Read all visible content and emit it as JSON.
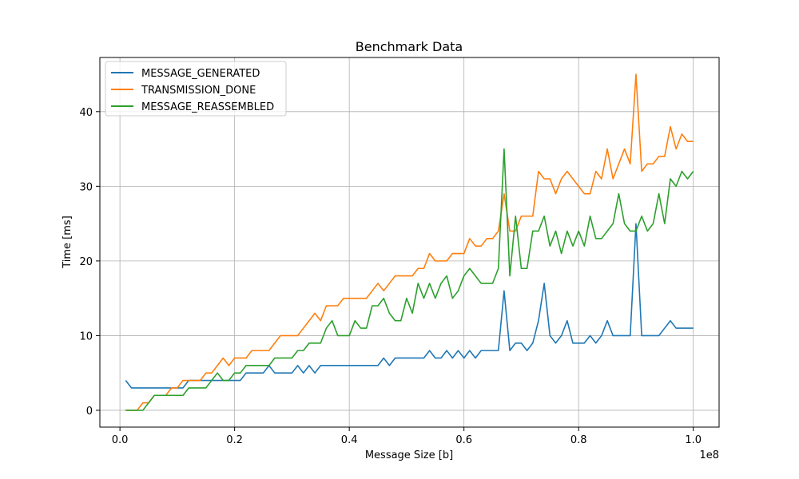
{
  "chart_data": {
    "type": "line",
    "title": "Benchmark Data",
    "xlabel": "Message Size [b]",
    "ylabel": "Time [ms]",
    "x_offset_label": "1e8",
    "xlim": [
      -3500000,
      104500000
    ],
    "ylim": [
      -2.25,
      47.25
    ],
    "xticks": [
      0,
      20000000,
      40000000,
      60000000,
      80000000,
      100000000
    ],
    "xtick_labels": [
      "0.0",
      "0.2",
      "0.4",
      "0.6",
      "0.8",
      "1.0"
    ],
    "yticks": [
      0,
      10,
      20,
      30,
      40
    ],
    "ytick_labels": [
      "0",
      "10",
      "20",
      "30",
      "40"
    ],
    "grid": true,
    "legend_position": "top-left",
    "x": [
      1000000,
      2000000,
      3000000,
      4000000,
      5000000,
      6000000,
      7000000,
      8000000,
      9000000,
      10000000,
      11000000,
      12000000,
      13000000,
      14000000,
      15000000,
      16000000,
      17000000,
      18000000,
      19000000,
      20000000,
      21000000,
      22000000,
      23000000,
      24000000,
      25000000,
      26000000,
      27000000,
      28000000,
      29000000,
      30000000,
      31000000,
      32000000,
      33000000,
      34000000,
      35000000,
      36000000,
      37000000,
      38000000,
      39000000,
      40000000,
      41000000,
      42000000,
      43000000,
      44000000,
      45000000,
      46000000,
      47000000,
      48000000,
      49000000,
      50000000,
      51000000,
      52000000,
      53000000,
      54000000,
      55000000,
      56000000,
      57000000,
      58000000,
      59000000,
      60000000,
      61000000,
      62000000,
      63000000,
      64000000,
      65000000,
      66000000,
      67000000,
      68000000,
      69000000,
      70000000,
      71000000,
      72000000,
      73000000,
      74000000,
      75000000,
      76000000,
      77000000,
      78000000,
      79000000,
      80000000,
      81000000,
      82000000,
      83000000,
      84000000,
      85000000,
      86000000,
      87000000,
      88000000,
      89000000,
      90000000,
      91000000,
      92000000,
      93000000,
      94000000,
      95000000,
      96000000,
      97000000,
      98000000,
      99000000,
      100000000
    ],
    "series": [
      {
        "name": "MESSAGE_GENERATED",
        "color": "#1f77b4",
        "values": [
          4,
          3,
          3,
          3,
          3,
          3,
          3,
          3,
          3,
          3,
          3,
          4,
          4,
          4,
          4,
          4,
          4,
          4,
          4,
          4,
          4,
          5,
          5,
          5,
          5,
          6,
          5,
          5,
          5,
          5,
          6,
          5,
          6,
          5,
          6,
          6,
          6,
          6,
          6,
          6,
          6,
          6,
          6,
          6,
          6,
          7,
          6,
          7,
          7,
          7,
          7,
          7,
          7,
          8,
          7,
          7,
          8,
          7,
          8,
          7,
          8,
          7,
          8,
          8,
          8,
          8,
          16,
          8,
          9,
          9,
          8,
          9,
          12,
          17,
          10,
          9,
          10,
          12,
          9,
          9,
          9,
          10,
          9,
          10,
          12,
          10,
          10,
          10,
          10,
          25,
          10,
          10,
          10,
          10,
          11,
          12,
          11,
          11,
          11,
          11
        ]
      },
      {
        "name": "TRANSMISSION_DONE",
        "color": "#ff7f0e",
        "values": [
          0,
          0,
          0,
          1,
          1,
          2,
          2,
          2,
          3,
          3,
          4,
          4,
          4,
          4,
          5,
          5,
          6,
          7,
          6,
          7,
          7,
          7,
          8,
          8,
          8,
          8,
          9,
          10,
          10,
          10,
          10,
          11,
          12,
          13,
          12,
          14,
          14,
          14,
          15,
          15,
          15,
          15,
          15,
          16,
          17,
          16,
          17,
          18,
          18,
          18,
          18,
          19,
          19,
          21,
          20,
          20,
          20,
          21,
          21,
          21,
          23,
          22,
          22,
          23,
          23,
          24,
          29,
          24,
          24,
          26,
          26,
          26,
          32,
          31,
          31,
          29,
          31,
          32,
          31,
          30,
          29,
          29,
          32,
          31,
          35,
          31,
          33,
          35,
          33,
          45,
          32,
          33,
          33,
          34,
          34,
          38,
          35,
          37,
          36,
          36
        ]
      },
      {
        "name": "MESSAGE_REASSEMBLED",
        "color": "#2ca02c",
        "values": [
          0,
          0,
          0,
          0,
          1,
          2,
          2,
          2,
          2,
          2,
          2,
          3,
          3,
          3,
          3,
          4,
          5,
          4,
          4,
          5,
          5,
          6,
          6,
          6,
          6,
          6,
          7,
          7,
          7,
          7,
          8,
          8,
          9,
          9,
          9,
          11,
          12,
          10,
          10,
          10,
          12,
          11,
          11,
          14,
          14,
          15,
          13,
          12,
          12,
          15,
          13,
          17,
          15,
          17,
          15,
          17,
          18,
          15,
          16,
          18,
          19,
          18,
          17,
          17,
          17,
          19,
          35,
          18,
          26,
          19,
          19,
          24,
          24,
          26,
          22,
          24,
          21,
          24,
          22,
          24,
          22,
          26,
          23,
          23,
          24,
          25,
          29,
          25,
          24,
          24,
          26,
          24,
          25,
          29,
          25,
          31,
          30,
          32,
          31,
          32
        ]
      }
    ]
  }
}
